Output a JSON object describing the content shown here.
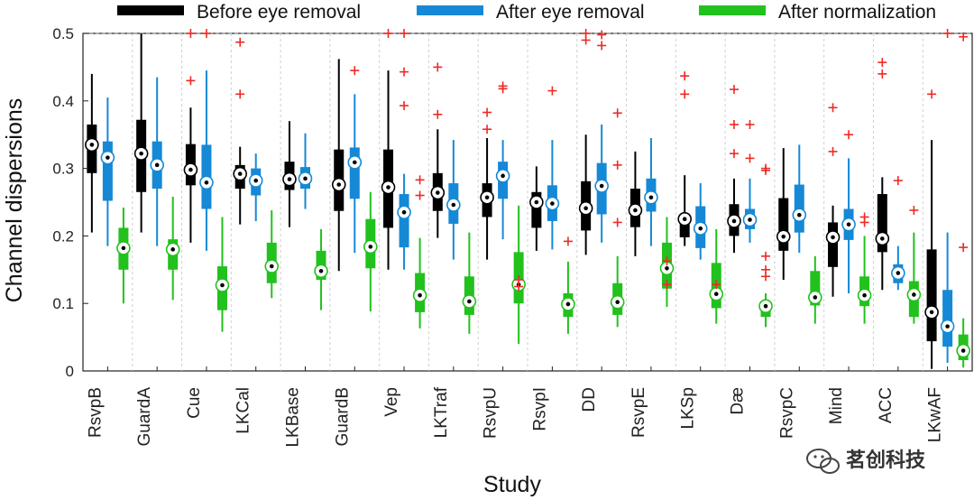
{
  "chart_data": {
    "type": "box",
    "xlabel": "Study",
    "ylabel": "Channel dispersions",
    "ylim": [
      0,
      0.5
    ],
    "yticks": [
      0,
      0.1,
      0.2,
      0.3,
      0.4,
      0.5
    ],
    "ytick_labels": [
      "0",
      "0.1",
      "0.2",
      "0.3",
      "0.4",
      "0.5"
    ],
    "grid": "horizontal dashed at 0.5 only",
    "legend_position": "top",
    "categories": [
      "RsvpB",
      "GuardA",
      "Cue",
      "LKCal",
      "LKBase",
      "GuardB",
      "Vep",
      "LKTraf",
      "RsvpU",
      "RsvpI",
      "DD",
      "RsvpE",
      "LKSp",
      "Dæ",
      "RsvpC",
      "Mind",
      "ACC",
      "LKwAF"
    ],
    "series": [
      {
        "name": "Before eye removal",
        "color": "#000000",
        "boxes": [
          {
            "wlo": 0.205,
            "q1": 0.293,
            "med": 0.335,
            "q3": 0.365,
            "whi": 0.44,
            "outliers": []
          },
          {
            "wlo": 0.205,
            "q1": 0.265,
            "med": 0.322,
            "q3": 0.372,
            "whi": 0.5,
            "outliers": []
          },
          {
            "wlo": 0.19,
            "q1": 0.275,
            "med": 0.298,
            "q3": 0.336,
            "whi": 0.39,
            "outliers": [
              0.43,
              0.5
            ]
          },
          {
            "wlo": 0.217,
            "q1": 0.27,
            "med": 0.292,
            "q3": 0.305,
            "whi": 0.332,
            "outliers": [
              0.41,
              0.487
            ]
          },
          {
            "wlo": 0.213,
            "q1": 0.268,
            "med": 0.284,
            "q3": 0.31,
            "whi": 0.37,
            "outliers": []
          },
          {
            "wlo": 0.148,
            "q1": 0.237,
            "med": 0.276,
            "q3": 0.328,
            "whi": 0.462,
            "outliers": []
          },
          {
            "wlo": 0.15,
            "q1": 0.212,
            "med": 0.272,
            "q3": 0.328,
            "whi": 0.445,
            "outliers": [
              0.5
            ]
          },
          {
            "wlo": 0.197,
            "q1": 0.237,
            "med": 0.264,
            "q3": 0.293,
            "whi": 0.358,
            "outliers": [
              0.38,
              0.45
            ]
          },
          {
            "wlo": 0.165,
            "q1": 0.228,
            "med": 0.257,
            "q3": 0.278,
            "whi": 0.345,
            "outliers": [
              0.358,
              0.383
            ]
          },
          {
            "wlo": 0.178,
            "q1": 0.212,
            "med": 0.25,
            "q3": 0.265,
            "whi": 0.303,
            "outliers": []
          },
          {
            "wlo": 0.172,
            "q1": 0.208,
            "med": 0.241,
            "q3": 0.281,
            "whi": 0.35,
            "outliers": [
              0.49,
              0.5
            ]
          },
          {
            "wlo": 0.17,
            "q1": 0.213,
            "med": 0.238,
            "q3": 0.27,
            "whi": 0.325,
            "outliers": []
          },
          {
            "wlo": 0.185,
            "q1": 0.198,
            "med": 0.225,
            "q3": 0.232,
            "whi": 0.29,
            "outliers": [
              0.41,
              0.437
            ]
          },
          {
            "wlo": 0.175,
            "q1": 0.2,
            "med": 0.222,
            "q3": 0.247,
            "whi": 0.285,
            "outliers": [
              0.322,
              0.365,
              0.417
            ]
          },
          {
            "wlo": 0.135,
            "q1": 0.178,
            "med": 0.199,
            "q3": 0.256,
            "whi": 0.33,
            "outliers": []
          },
          {
            "wlo": 0.11,
            "q1": 0.154,
            "med": 0.198,
            "q3": 0.22,
            "whi": 0.245,
            "outliers": [
              0.325,
              0.39
            ]
          },
          {
            "wlo": 0.12,
            "q1": 0.176,
            "med": 0.196,
            "q3": 0.262,
            "whi": 0.287,
            "outliers": [
              0.44,
              0.457
            ]
          },
          {
            "wlo": 0.003,
            "q1": 0.044,
            "med": 0.087,
            "q3": 0.18,
            "whi": 0.342,
            "outliers": [
              0.41
            ]
          }
        ]
      },
      {
        "name": "After eye removal",
        "color": "#1589d6",
        "boxes": [
          {
            "wlo": 0.185,
            "q1": 0.252,
            "med": 0.316,
            "q3": 0.34,
            "whi": 0.405,
            "outliers": []
          },
          {
            "wlo": 0.185,
            "q1": 0.27,
            "med": 0.305,
            "q3": 0.34,
            "whi": 0.435,
            "outliers": []
          },
          {
            "wlo": 0.178,
            "q1": 0.24,
            "med": 0.279,
            "q3": 0.335,
            "whi": 0.445,
            "outliers": [
              0.5
            ]
          },
          {
            "wlo": 0.222,
            "q1": 0.26,
            "med": 0.282,
            "q3": 0.3,
            "whi": 0.322,
            "outliers": []
          },
          {
            "wlo": 0.24,
            "q1": 0.27,
            "med": 0.285,
            "q3": 0.302,
            "whi": 0.352,
            "outliers": []
          },
          {
            "wlo": 0.175,
            "q1": 0.255,
            "med": 0.309,
            "q3": 0.331,
            "whi": 0.41,
            "outliers": [
              0.445
            ]
          },
          {
            "wlo": 0.15,
            "q1": 0.183,
            "med": 0.235,
            "q3": 0.262,
            "whi": 0.292,
            "outliers": [
              0.393,
              0.443,
              0.5
            ]
          },
          {
            "wlo": 0.165,
            "q1": 0.218,
            "med": 0.246,
            "q3": 0.278,
            "whi": 0.342,
            "outliers": []
          },
          {
            "wlo": 0.195,
            "q1": 0.255,
            "med": 0.289,
            "q3": 0.31,
            "whi": 0.342,
            "outliers": [
              0.418,
              0.422
            ]
          },
          {
            "wlo": 0.18,
            "q1": 0.222,
            "med": 0.248,
            "q3": 0.275,
            "whi": 0.342,
            "outliers": [
              0.415
            ]
          },
          {
            "wlo": 0.19,
            "q1": 0.232,
            "med": 0.274,
            "q3": 0.308,
            "whi": 0.365,
            "outliers": [
              0.482,
              0.498
            ]
          },
          {
            "wlo": 0.185,
            "q1": 0.236,
            "med": 0.257,
            "q3": 0.285,
            "whi": 0.345,
            "outliers": []
          },
          {
            "wlo": 0.165,
            "q1": 0.182,
            "med": 0.211,
            "q3": 0.244,
            "whi": 0.278,
            "outliers": []
          },
          {
            "wlo": 0.19,
            "q1": 0.21,
            "med": 0.224,
            "q3": 0.24,
            "whi": 0.285,
            "outliers": [
              0.315,
              0.365
            ]
          },
          {
            "wlo": 0.175,
            "q1": 0.205,
            "med": 0.231,
            "q3": 0.276,
            "whi": 0.335,
            "outliers": []
          },
          {
            "wlo": 0.115,
            "q1": 0.194,
            "med": 0.217,
            "q3": 0.24,
            "whi": 0.315,
            "outliers": [
              0.35
            ]
          },
          {
            "wlo": 0.12,
            "q1": 0.13,
            "med": 0.145,
            "q3": 0.158,
            "whi": 0.185,
            "outliers": [
              0.282
            ]
          },
          {
            "wlo": 0.012,
            "q1": 0.036,
            "med": 0.066,
            "q3": 0.12,
            "whi": 0.205,
            "outliers": [
              0.5
            ]
          }
        ]
      },
      {
        "name": "After normalization",
        "color": "#22c11d",
        "boxes": [
          {
            "wlo": 0.1,
            "q1": 0.15,
            "med": 0.182,
            "q3": 0.212,
            "whi": 0.242,
            "outliers": []
          },
          {
            "wlo": 0.105,
            "q1": 0.15,
            "med": 0.18,
            "q3": 0.195,
            "whi": 0.258,
            "outliers": []
          },
          {
            "wlo": 0.058,
            "q1": 0.09,
            "med": 0.127,
            "q3": 0.155,
            "whi": 0.228,
            "outliers": []
          },
          {
            "wlo": 0.108,
            "q1": 0.13,
            "med": 0.155,
            "q3": 0.19,
            "whi": 0.238,
            "outliers": []
          },
          {
            "wlo": 0.09,
            "q1": 0.135,
            "med": 0.148,
            "q3": 0.178,
            "whi": 0.21,
            "outliers": []
          },
          {
            "wlo": 0.088,
            "q1": 0.152,
            "med": 0.184,
            "q3": 0.225,
            "whi": 0.265,
            "outliers": []
          },
          {
            "wlo": 0.063,
            "q1": 0.087,
            "med": 0.112,
            "q3": 0.145,
            "whi": 0.197,
            "outliers": [
              0.26,
              0.283
            ]
          },
          {
            "wlo": 0.055,
            "q1": 0.083,
            "med": 0.103,
            "q3": 0.14,
            "whi": 0.205,
            "outliers": []
          },
          {
            "wlo": 0.04,
            "q1": 0.1,
            "med": 0.128,
            "q3": 0.176,
            "whi": 0.245,
            "outliers": [
              0.125,
              0.135
            ]
          },
          {
            "wlo": 0.055,
            "q1": 0.08,
            "med": 0.099,
            "q3": 0.115,
            "whi": 0.162,
            "outliers": [
              0.192
            ]
          },
          {
            "wlo": 0.065,
            "q1": 0.083,
            "med": 0.102,
            "q3": 0.13,
            "whi": 0.17,
            "outliers": [
              0.22,
              0.305,
              0.382
            ]
          },
          {
            "wlo": 0.095,
            "q1": 0.122,
            "med": 0.152,
            "q3": 0.19,
            "whi": 0.228,
            "outliers": [
              0.128,
              0.163
            ]
          },
          {
            "wlo": 0.07,
            "q1": 0.093,
            "med": 0.114,
            "q3": 0.16,
            "whi": 0.21,
            "outliers": [
              0.128
            ]
          },
          {
            "wlo": 0.065,
            "q1": 0.08,
            "med": 0.096,
            "q3": 0.1,
            "whi": 0.115,
            "outliers": [
              0.14,
              0.15,
              0.17,
              0.297,
              0.3
            ]
          },
          {
            "wlo": 0.07,
            "q1": 0.097,
            "med": 0.109,
            "q3": 0.148,
            "whi": 0.17,
            "outliers": []
          },
          {
            "wlo": 0.07,
            "q1": 0.096,
            "med": 0.112,
            "q3": 0.14,
            "whi": 0.2,
            "outliers": [
              0.22,
              0.228
            ]
          },
          {
            "wlo": 0.07,
            "q1": 0.08,
            "med": 0.113,
            "q3": 0.133,
            "whi": 0.205,
            "outliers": [
              0.238
            ]
          },
          {
            "wlo": 0.005,
            "q1": 0.016,
            "med": 0.03,
            "q3": 0.054,
            "whi": 0.078,
            "outliers": [
              0.183,
              0.495
            ]
          }
        ]
      }
    ],
    "outlier_color": "#ee2a24"
  },
  "watermark": {
    "text": "茗创科技",
    "icon": "wechat-icon"
  }
}
